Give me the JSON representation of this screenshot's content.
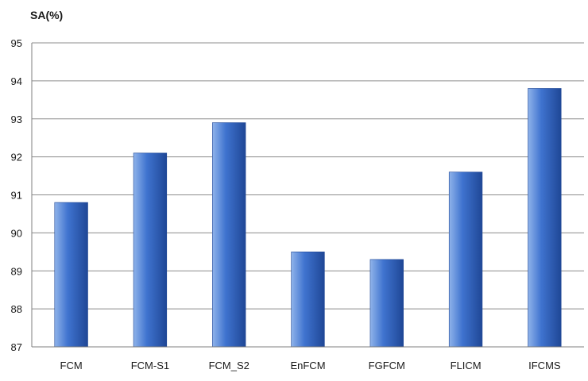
{
  "chart_data": {
    "type": "bar",
    "title": "",
    "xlabel": "",
    "ylabel": "SA(%)",
    "categories": [
      "FCM",
      "FCM-S1",
      "FCM_S2",
      "EnFCM",
      "FGFCM",
      "FLICM",
      "IFCMS"
    ],
    "values": [
      90.8,
      92.1,
      92.9,
      89.5,
      89.3,
      91.6,
      93.8
    ],
    "ylim": [
      87,
      95
    ],
    "yticks": [
      87,
      88,
      89,
      90,
      91,
      92,
      93,
      94,
      95
    ],
    "grid": true,
    "legend": "none",
    "colors": {
      "bar_light": "#8fb3ea",
      "bar_mid": "#3f73cf",
      "bar_dark": "#1f4796",
      "grid": "#8c8c8c",
      "axis": "#7f7f7f"
    }
  }
}
